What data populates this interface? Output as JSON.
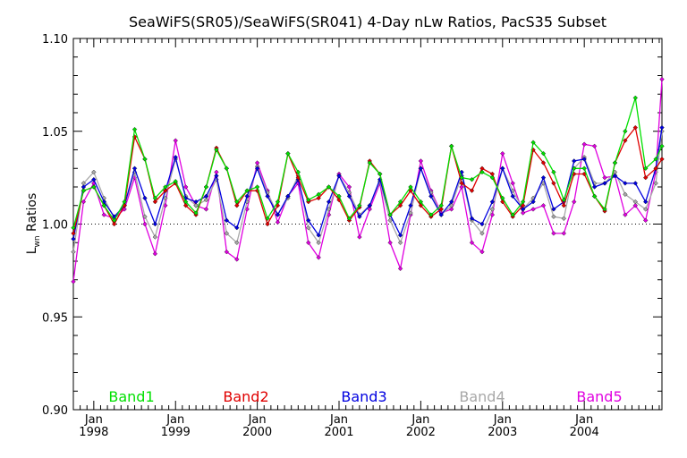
{
  "chart_data": {
    "type": "line",
    "title": "SeaWiFS(SR05)/SeaWiFS(SR041) 4-Day nLw Ratios, PacS35 Subset",
    "ylabel_main": "L",
    "ylabel_sub": "wn",
    "ylabel_rest": " Ratios",
    "ylim": [
      0.9,
      1.1
    ],
    "xlim": [
      1997.75,
      2004.95
    ],
    "y_ticks": [
      0.9,
      0.95,
      1.0,
      1.05,
      1.1
    ],
    "y_tick_labels": [
      "0.90",
      "0.95",
      "1.00",
      "1.05",
      "1.10"
    ],
    "x_ticks": [
      {
        "value": 1998,
        "month": "Jan",
        "year": "1998"
      },
      {
        "value": 1999,
        "month": "Jan",
        "year": "1999"
      },
      {
        "value": 2000,
        "month": "Jan",
        "year": "2000"
      },
      {
        "value": 2001,
        "month": "Jan",
        "year": "2001"
      },
      {
        "value": 2002,
        "month": "Jan",
        "year": "2002"
      },
      {
        "value": 2003,
        "month": "Jan",
        "year": "2003"
      },
      {
        "value": 2004,
        "month": "Jan",
        "year": "2004"
      }
    ],
    "reference_line": 1.0,
    "grid": false,
    "legend_placement": "bottom",
    "x": [
      1997.75,
      1997.875,
      1998.0,
      1998.125,
      1998.25,
      1998.375,
      1998.5,
      1998.625,
      1998.75,
      1998.875,
      1999.0,
      1999.125,
      1999.25,
      1999.375,
      1999.5,
      1999.625,
      1999.75,
      1999.875,
      2000.0,
      2000.125,
      2000.25,
      2000.375,
      2000.5,
      2000.625,
      2000.75,
      2000.875,
      2001.0,
      2001.125,
      2001.25,
      2001.375,
      2001.5,
      2001.625,
      2001.75,
      2001.875,
      2002.0,
      2002.125,
      2002.25,
      2002.375,
      2002.5,
      2002.625,
      2002.75,
      2002.875,
      2003.0,
      2003.125,
      2003.25,
      2003.375,
      2003.5,
      2003.625,
      2003.75,
      2003.875,
      2004.0,
      2004.125,
      2004.25,
      2004.375,
      2004.5,
      2004.625,
      2004.75,
      2004.875,
      2004.95
    ],
    "series": [
      {
        "name": "Band1",
        "color": "#00e000",
        "values": [
          0.998,
          1.018,
          1.02,
          1.01,
          1.002,
          1.012,
          1.051,
          1.035,
          1.014,
          1.02,
          1.023,
          1.012,
          1.006,
          1.02,
          1.04,
          1.03,
          1.012,
          1.018,
          1.02,
          1.003,
          1.012,
          1.038,
          1.028,
          1.013,
          1.016,
          1.02,
          1.015,
          1.003,
          1.01,
          1.033,
          1.027,
          1.005,
          1.012,
          1.02,
          1.012,
          1.005,
          1.01,
          1.042,
          1.025,
          1.024,
          1.028,
          1.025,
          1.014,
          1.005,
          1.012,
          1.044,
          1.038,
          1.028,
          1.013,
          1.03,
          1.03,
          1.015,
          1.008,
          1.033,
          1.05,
          1.068,
          1.03,
          1.035,
          1.042
        ]
      },
      {
        "name": "Band2",
        "color": "#e00000",
        "values": [
          0.995,
          1.018,
          1.02,
          1.01,
          1.0,
          1.01,
          1.047,
          1.035,
          1.012,
          1.018,
          1.022,
          1.01,
          1.005,
          1.02,
          1.041,
          1.03,
          1.01,
          1.018,
          1.018,
          1.0,
          1.01,
          1.038,
          1.025,
          1.012,
          1.014,
          1.02,
          1.013,
          1.002,
          1.009,
          1.034,
          1.027,
          1.005,
          1.01,
          1.018,
          1.01,
          1.004,
          1.008,
          1.042,
          1.022,
          1.018,
          1.03,
          1.027,
          1.012,
          1.004,
          1.01,
          1.04,
          1.033,
          1.022,
          1.01,
          1.027,
          1.027,
          1.015,
          1.007,
          1.033,
          1.045,
          1.052,
          1.025,
          1.03,
          1.035
        ]
      },
      {
        "name": "Band3",
        "color": "#0000e0",
        "values": [
          0.992,
          1.02,
          1.024,
          1.012,
          1.004,
          1.01,
          1.03,
          1.014,
          1.0,
          1.018,
          1.036,
          1.014,
          1.012,
          1.015,
          1.026,
          1.002,
          0.998,
          1.015,
          1.03,
          1.015,
          1.005,
          1.015,
          1.024,
          1.002,
          0.994,
          1.012,
          1.026,
          1.015,
          1.004,
          1.01,
          1.024,
          1.005,
          0.994,
          1.01,
          1.03,
          1.015,
          1.005,
          1.012,
          1.028,
          1.003,
          1.0,
          1.012,
          1.03,
          1.015,
          1.008,
          1.012,
          1.025,
          1.008,
          1.012,
          1.034,
          1.035,
          1.02,
          1.022,
          1.026,
          1.022,
          1.022,
          1.012,
          1.03,
          1.052
        ]
      },
      {
        "name": "Band4",
        "color": "#a8a8a8",
        "values": [
          0.985,
          1.022,
          1.028,
          1.014,
          1.003,
          1.01,
          1.028,
          1.004,
          0.993,
          1.014,
          1.035,
          1.015,
          1.01,
          1.013,
          1.024,
          0.995,
          0.99,
          1.012,
          1.031,
          1.017,
          1.005,
          1.014,
          1.026,
          0.998,
          0.99,
          1.008,
          1.026,
          1.017,
          1.005,
          1.01,
          1.023,
          1.002,
          0.99,
          1.006,
          1.03,
          1.017,
          1.005,
          1.01,
          1.026,
          1.002,
          0.995,
          1.008,
          1.03,
          1.018,
          1.008,
          1.014,
          1.022,
          1.004,
          1.003,
          1.03,
          1.036,
          1.022,
          1.022,
          1.028,
          1.016,
          1.012,
          1.008,
          1.022,
          1.05
        ]
      },
      {
        "name": "Band5",
        "color": "#e000e0",
        "values": [
          0.969,
          1.012,
          1.022,
          1.005,
          1.003,
          1.008,
          1.025,
          1.0,
          0.984,
          1.01,
          1.045,
          1.02,
          1.01,
          1.008,
          1.028,
          0.985,
          0.981,
          1.008,
          1.033,
          1.018,
          1.001,
          1.015,
          1.022,
          0.99,
          0.982,
          1.005,
          1.027,
          1.02,
          0.993,
          1.008,
          1.022,
          0.99,
          0.976,
          1.005,
          1.034,
          1.018,
          1.006,
          1.008,
          1.02,
          0.99,
          0.985,
          1.005,
          1.038,
          1.022,
          1.006,
          1.008,
          1.01,
          0.995,
          0.995,
          1.012,
          1.043,
          1.042,
          1.025,
          1.026,
          1.005,
          1.01,
          1.002,
          1.028,
          1.078
        ]
      }
    ]
  }
}
